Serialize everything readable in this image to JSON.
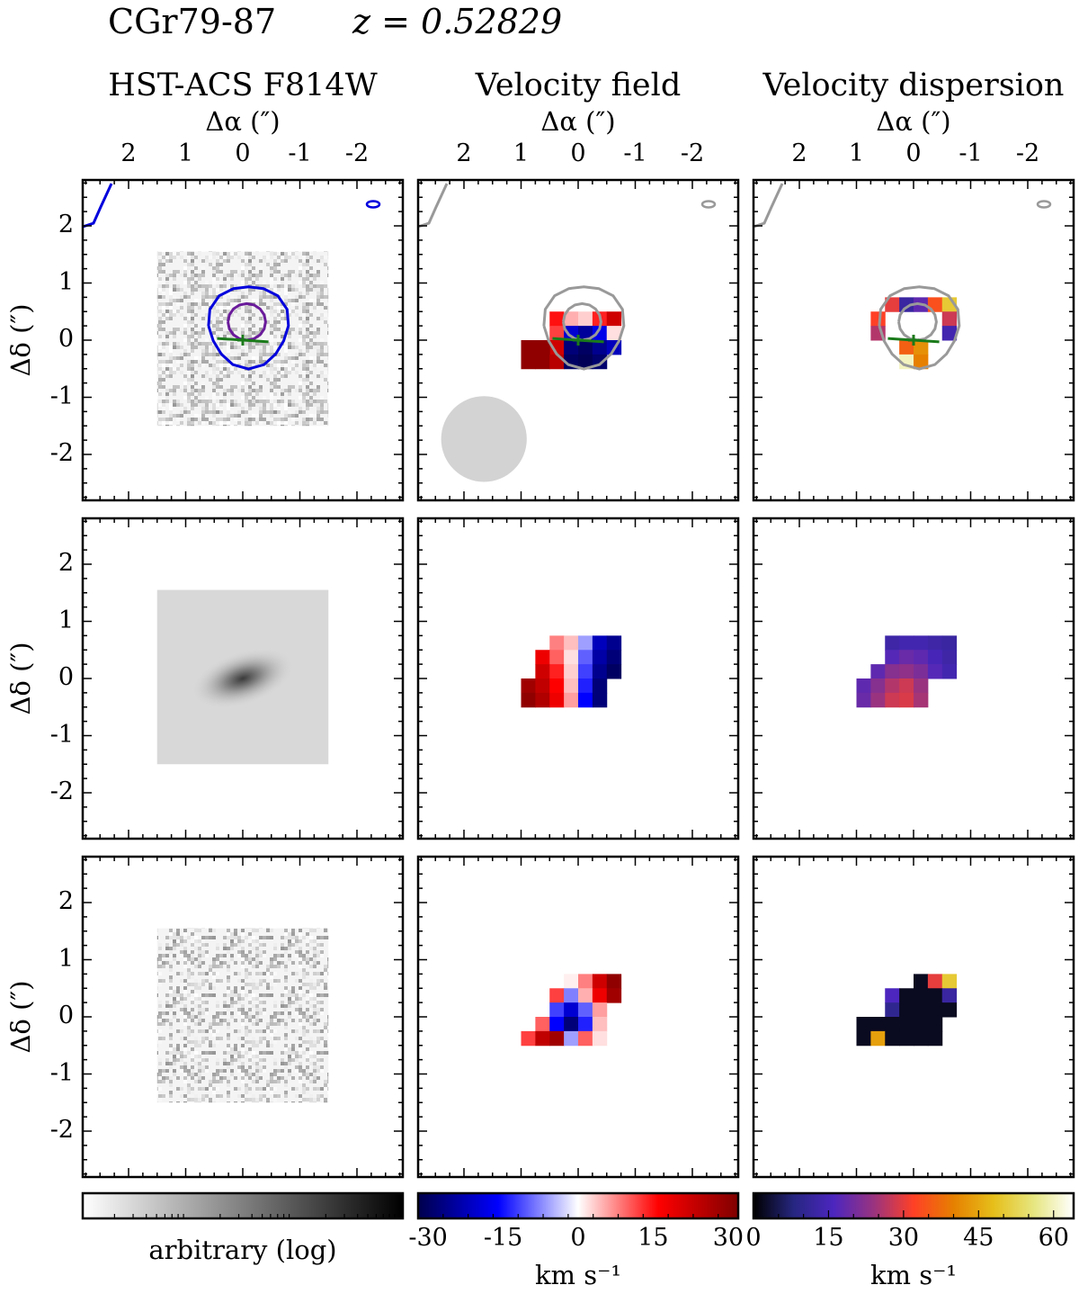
{
  "header": {
    "object_name": "CGr79-87",
    "redshift_label": "z = 0.52829"
  },
  "columns": [
    {
      "title": "HST-ACS F814W"
    },
    {
      "title": "Velocity field"
    },
    {
      "title": "Velocity dispersion"
    }
  ],
  "axes": {
    "xlabel": "Δα (″)",
    "ylabel": "Δδ (″)",
    "xticks": [
      "2",
      "1",
      "0",
      "-1",
      "-2"
    ],
    "yticks": [
      "2",
      "1",
      "0",
      "-1",
      "-2"
    ]
  },
  "colorbars": [
    {
      "label": "arbitrary (log)",
      "ticks": [],
      "colormap": "greys",
      "scale": "log"
    },
    {
      "label": "km s⁻¹",
      "ticks": [
        "-30",
        "-15",
        "0",
        "15",
        "30"
      ],
      "colormap": "seismic",
      "range": [
        -32,
        32
      ]
    },
    {
      "label": "km s⁻¹",
      "ticks": [
        "0",
        "15",
        "30",
        "45",
        "60"
      ],
      "colormap": "CMRmap",
      "range": [
        0,
        64
      ]
    }
  ],
  "colors": {
    "outer_contour": "#0000dd",
    "inner_contour": "#6a1b9a",
    "gray_contour": "#999999",
    "kinematic_axis": "#1a7a1a",
    "psf_disk": "#d3d3d3"
  },
  "chart_data": {
    "type": "heatmap",
    "layout": "3x3 panel grid",
    "rows": [
      "observed",
      "model",
      "residual"
    ],
    "xlim": [
      2.8,
      -2.8
    ],
    "ylim": [
      -2.8,
      2.8
    ],
    "kinematic_pixels_arcsec": 0.25,
    "velocity_field_observed": [
      {
        "x": 0.375,
        "y": 0.375,
        "v": 15
      },
      {
        "x": 0.125,
        "y": 0.375,
        "v": 5
      },
      {
        "x": -0.125,
        "y": 0.375,
        "v": 3
      },
      {
        "x": -0.375,
        "y": 0.375,
        "v": 14
      },
      {
        "x": -0.625,
        "y": 0.375,
        "v": 22
      },
      {
        "x": 0.375,
        "y": 0.125,
        "v": 12
      },
      {
        "x": 0.125,
        "y": 0.125,
        "v": -20
      },
      {
        "x": -0.125,
        "y": 0.125,
        "v": -25
      },
      {
        "x": -0.375,
        "y": 0.125,
        "v": -18
      },
      {
        "x": -0.625,
        "y": 0.125,
        "v": 2
      },
      {
        "x": 0.375,
        "y": -0.125,
        "v": 22
      },
      {
        "x": 0.125,
        "y": -0.125,
        "v": -28
      },
      {
        "x": -0.125,
        "y": -0.125,
        "v": -30
      },
      {
        "x": -0.375,
        "y": -0.125,
        "v": -26
      },
      {
        "x": -0.625,
        "y": -0.125,
        "v": -22
      },
      {
        "x": 0.625,
        "y": -0.125,
        "v": 30
      },
      {
        "x": 0.875,
        "y": -0.125,
        "v": 30
      },
      {
        "x": 0.625,
        "y": -0.375,
        "v": 30
      },
      {
        "x": 0.875,
        "y": -0.375,
        "v": 30
      },
      {
        "x": 0.375,
        "y": -0.375,
        "v": 25
      },
      {
        "x": 0.125,
        "y": -0.375,
        "v": -30
      },
      {
        "x": -0.125,
        "y": -0.375,
        "v": -31
      },
      {
        "x": -0.375,
        "y": -0.375,
        "v": -29
      }
    ],
    "velocity_field_model": [
      {
        "x": 0.375,
        "y": 0.625,
        "v": 8
      },
      {
        "x": 0.125,
        "y": 0.625,
        "v": 4
      },
      {
        "x": -0.125,
        "y": 0.625,
        "v": -6
      },
      {
        "x": -0.375,
        "y": 0.625,
        "v": -22
      },
      {
        "x": -0.625,
        "y": 0.625,
        "v": -26
      },
      {
        "x": 0.625,
        "y": 0.375,
        "v": 18
      },
      {
        "x": 0.375,
        "y": 0.375,
        "v": 10
      },
      {
        "x": 0.125,
        "y": 0.375,
        "v": 2
      },
      {
        "x": -0.125,
        "y": 0.375,
        "v": -10
      },
      {
        "x": -0.375,
        "y": 0.375,
        "v": -24
      },
      {
        "x": -0.625,
        "y": 0.375,
        "v": -28
      },
      {
        "x": 0.625,
        "y": 0.125,
        "v": 22
      },
      {
        "x": 0.375,
        "y": 0.125,
        "v": 14
      },
      {
        "x": 0.125,
        "y": 0.125,
        "v": 3
      },
      {
        "x": -0.125,
        "y": 0.125,
        "v": -12
      },
      {
        "x": -0.375,
        "y": 0.125,
        "v": -26
      },
      {
        "x": -0.625,
        "y": 0.125,
        "v": -30
      },
      {
        "x": 0.875,
        "y": -0.125,
        "v": 28
      },
      {
        "x": 0.625,
        "y": -0.125,
        "v": 24
      },
      {
        "x": 0.375,
        "y": -0.125,
        "v": 16
      },
      {
        "x": 0.125,
        "y": -0.125,
        "v": 4
      },
      {
        "x": -0.125,
        "y": -0.125,
        "v": -14
      },
      {
        "x": -0.375,
        "y": -0.125,
        "v": -28
      },
      {
        "x": 0.875,
        "y": -0.375,
        "v": 30
      },
      {
        "x": 0.625,
        "y": -0.375,
        "v": 26
      },
      {
        "x": 0.375,
        "y": -0.375,
        "v": 18
      },
      {
        "x": 0.125,
        "y": -0.375,
        "v": 6
      },
      {
        "x": -0.125,
        "y": -0.375,
        "v": -16
      },
      {
        "x": -0.375,
        "y": -0.375,
        "v": -28
      }
    ],
    "velocity_field_residual": [
      {
        "x": 0.125,
        "y": 0.625,
        "v": 1
      },
      {
        "x": -0.125,
        "y": 0.625,
        "v": 8
      },
      {
        "x": -0.375,
        "y": 0.625,
        "v": 22
      },
      {
        "x": -0.625,
        "y": 0.625,
        "v": 30
      },
      {
        "x": 0.375,
        "y": 0.375,
        "v": 12
      },
      {
        "x": 0.125,
        "y": 0.375,
        "v": -8
      },
      {
        "x": -0.125,
        "y": 0.375,
        "v": 5
      },
      {
        "x": -0.375,
        "y": 0.375,
        "v": 18
      },
      {
        "x": -0.625,
        "y": 0.375,
        "v": 28
      },
      {
        "x": 0.375,
        "y": 0.125,
        "v": -12
      },
      {
        "x": 0.125,
        "y": 0.125,
        "v": -20
      },
      {
        "x": -0.125,
        "y": 0.125,
        "v": -10
      },
      {
        "x": -0.375,
        "y": 0.125,
        "v": 6
      },
      {
        "x": 0.625,
        "y": -0.125,
        "v": 10
      },
      {
        "x": 0.375,
        "y": -0.125,
        "v": -16
      },
      {
        "x": 0.125,
        "y": -0.125,
        "v": -28
      },
      {
        "x": -0.125,
        "y": -0.125,
        "v": -14
      },
      {
        "x": -0.375,
        "y": -0.125,
        "v": 4
      },
      {
        "x": 0.875,
        "y": -0.375,
        "v": 12
      },
      {
        "x": 0.625,
        "y": -0.375,
        "v": 24
      },
      {
        "x": 0.375,
        "y": -0.375,
        "v": 28
      },
      {
        "x": 0.125,
        "y": -0.375,
        "v": -6
      },
      {
        "x": -0.125,
        "y": -0.375,
        "v": 10
      },
      {
        "x": -0.375,
        "y": -0.375,
        "v": 2
      }
    ],
    "dispersion_observed": [
      {
        "x": 0.375,
        "y": 0.625,
        "s": 30
      },
      {
        "x": 0.125,
        "y": 0.625,
        "s": 12
      },
      {
        "x": -0.125,
        "y": 0.625,
        "s": 18
      },
      {
        "x": -0.375,
        "y": 0.625,
        "s": 34
      },
      {
        "x": -0.625,
        "y": 0.625,
        "s": 50
      },
      {
        "x": 0.625,
        "y": 0.375,
        "s": 32
      },
      {
        "x": -0.625,
        "y": 0.375,
        "s": 28
      },
      {
        "x": 0.625,
        "y": 0.125,
        "s": 26
      },
      {
        "x": -0.625,
        "y": 0.125,
        "s": 14
      },
      {
        "x": 0.125,
        "y": -0.125,
        "s": 36
      },
      {
        "x": -0.125,
        "y": -0.125,
        "s": 42
      },
      {
        "x": 0.125,
        "y": -0.375,
        "s": 60
      },
      {
        "x": -0.125,
        "y": -0.375,
        "s": 40
      }
    ],
    "dispersion_model": [
      {
        "x": 0.375,
        "y": 0.625,
        "s": 13
      },
      {
        "x": 0.125,
        "y": 0.625,
        "s": 14
      },
      {
        "x": -0.125,
        "y": 0.625,
        "s": 14
      },
      {
        "x": -0.375,
        "y": 0.625,
        "s": 13
      },
      {
        "x": -0.625,
        "y": 0.625,
        "s": 12
      },
      {
        "x": 0.375,
        "y": 0.375,
        "s": 17
      },
      {
        "x": 0.125,
        "y": 0.375,
        "s": 19
      },
      {
        "x": -0.125,
        "y": 0.375,
        "s": 18
      },
      {
        "x": -0.375,
        "y": 0.375,
        "s": 15
      },
      {
        "x": -0.625,
        "y": 0.375,
        "s": 13
      },
      {
        "x": 0.625,
        "y": 0.125,
        "s": 18
      },
      {
        "x": 0.375,
        "y": 0.125,
        "s": 22
      },
      {
        "x": 0.125,
        "y": 0.125,
        "s": 23
      },
      {
        "x": -0.125,
        "y": 0.125,
        "s": 21
      },
      {
        "x": -0.375,
        "y": 0.125,
        "s": 17
      },
      {
        "x": -0.625,
        "y": 0.125,
        "s": 14
      },
      {
        "x": 0.875,
        "y": -0.125,
        "s": 18
      },
      {
        "x": 0.625,
        "y": -0.125,
        "s": 22
      },
      {
        "x": 0.375,
        "y": -0.125,
        "s": 26
      },
      {
        "x": 0.125,
        "y": -0.125,
        "s": 28
      },
      {
        "x": -0.125,
        "y": -0.125,
        "s": 24
      },
      {
        "x": 0.875,
        "y": -0.375,
        "s": 19
      },
      {
        "x": 0.625,
        "y": -0.375,
        "s": 24
      },
      {
        "x": 0.375,
        "y": -0.375,
        "s": 28
      },
      {
        "x": 0.125,
        "y": -0.375,
        "s": 29
      },
      {
        "x": -0.125,
        "y": -0.375,
        "s": 25
      }
    ],
    "dispersion_residual": [
      {
        "x": -0.125,
        "y": 0.625,
        "s": 2
      },
      {
        "x": -0.375,
        "y": 0.625,
        "s": 30
      },
      {
        "x": -0.625,
        "y": 0.625,
        "s": 50
      },
      {
        "x": 0.375,
        "y": 0.375,
        "s": 16
      },
      {
        "x": 0.125,
        "y": 0.375,
        "s": 2
      },
      {
        "x": -0.125,
        "y": 0.375,
        "s": 2
      },
      {
        "x": -0.375,
        "y": 0.375,
        "s": 2
      },
      {
        "x": -0.625,
        "y": 0.375,
        "s": 12
      },
      {
        "x": 0.375,
        "y": 0.125,
        "s": 10
      },
      {
        "x": 0.125,
        "y": 0.125,
        "s": 2
      },
      {
        "x": -0.125,
        "y": 0.125,
        "s": 2
      },
      {
        "x": -0.375,
        "y": 0.125,
        "s": 2
      },
      {
        "x": -0.625,
        "y": 0.125,
        "s": 2
      },
      {
        "x": 0.875,
        "y": -0.125,
        "s": 2
      },
      {
        "x": 0.625,
        "y": -0.125,
        "s": 2
      },
      {
        "x": 0.375,
        "y": -0.125,
        "s": 2
      },
      {
        "x": 0.125,
        "y": -0.125,
        "s": 2
      },
      {
        "x": -0.125,
        "y": -0.125,
        "s": 2
      },
      {
        "x": -0.375,
        "y": -0.125,
        "s": 2
      },
      {
        "x": 0.875,
        "y": -0.375,
        "s": 2
      },
      {
        "x": 0.625,
        "y": -0.375,
        "s": 44
      },
      {
        "x": 0.375,
        "y": -0.375,
        "s": 2
      },
      {
        "x": 0.125,
        "y": -0.375,
        "s": 2
      },
      {
        "x": -0.125,
        "y": -0.375,
        "s": 2
      },
      {
        "x": -0.375,
        "y": -0.375,
        "s": 2
      }
    ],
    "kinematic_center": {
      "x": 0,
      "y": 0
    },
    "kinematic_axis_end_points": [
      [
        0.45,
        0.03
      ],
      [
        -0.45,
        -0.03
      ]
    ],
    "psf_fwhm_arcsec": 1.5,
    "psf_center": {
      "x": 1.65,
      "y": -1.73
    }
  }
}
